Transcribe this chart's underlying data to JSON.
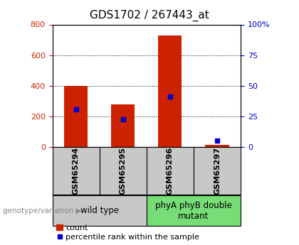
{
  "title": "GDS1702 / 267443_at",
  "categories": [
    "GSM65294",
    "GSM65295",
    "GSM65296",
    "GSM65297"
  ],
  "count_values": [
    400,
    280,
    730,
    15
  ],
  "percentile_values": [
    30.6,
    22.5,
    41.25,
    5.0
  ],
  "left_ylim": [
    0,
    800
  ],
  "left_yticks": [
    0,
    200,
    400,
    600,
    800
  ],
  "right_yticks": [
    0,
    25,
    50,
    75,
    100
  ],
  "right_ytick_labels": [
    "0",
    "25",
    "50",
    "75",
    "100%"
  ],
  "left_tick_color": "#cc2200",
  "right_tick_color": "#0000cc",
  "bar_color": "#cc2200",
  "percentile_color": "#0000cc",
  "bar_width": 0.5,
  "groups": [
    {
      "label": "wild type",
      "indices": [
        0,
        1
      ],
      "color": "#c8c8c8"
    },
    {
      "label": "phyA phyB double\nmutant",
      "indices": [
        2,
        3
      ],
      "color": "#77dd77"
    }
  ],
  "legend_count_label": "count",
  "legend_percentile_label": "percentile rank within the sample",
  "genotype_label": "genotype/variation",
  "title_fontsize": 11,
  "tick_fontsize": 8,
  "label_fontsize": 8,
  "group_fontsize": 8.5,
  "legend_fontsize": 8
}
